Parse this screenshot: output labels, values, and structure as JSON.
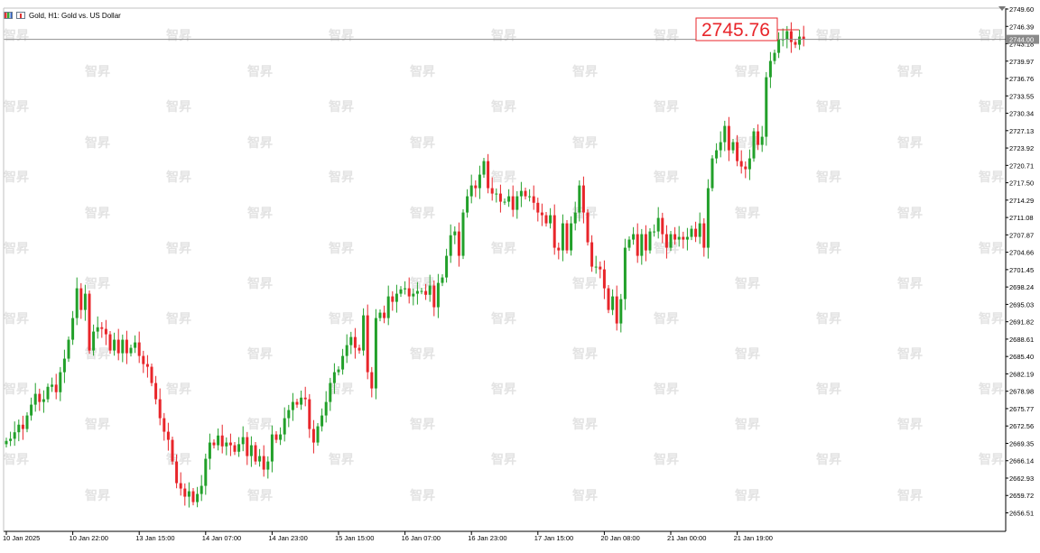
{
  "header": {
    "symbol_title": "Gold, H1:  Gold vs. US Dollar",
    "chart_icon": "bar-chart-icon",
    "candle_icon": "candlestick-icon"
  },
  "watermark": {
    "text": "智昇"
  },
  "price_label": {
    "value": "2745.76"
  },
  "current_price_tag": {
    "value": "2744.00"
  },
  "colors": {
    "up": "#22a02a",
    "down": "#e8252a",
    "axis": "#000000",
    "price_line": "#8f8f8f",
    "price_tag_bg": "#8a8a8a",
    "label_border": "#e8252a"
  },
  "chart_data": {
    "type": "candlestick",
    "y_tick_labels": [
      "2749.60",
      "2746.39",
      "2743.18",
      "2739.97",
      "2736.76",
      "2733.55",
      "2730.34",
      "2727.13",
      "2723.92",
      "2720.71",
      "2717.50",
      "2714.29",
      "2711.08",
      "2707.87",
      "2704.66",
      "2701.45",
      "2698.24",
      "2695.03",
      "2691.82",
      "2688.61",
      "2685.40",
      "2682.19",
      "2678.98",
      "2675.77",
      "2672.56",
      "2669.35",
      "2666.14",
      "2662.93",
      "2659.72",
      "2656.51"
    ],
    "ylim": [
      2656.51,
      2749.6
    ],
    "x_tick_labels": [
      "10 Jan 2025",
      "10 Jan 22:00",
      "13 Jan 15:00",
      "14 Jan 07:00",
      "14 Jan 23:00",
      "15 Jan 15:00",
      "16 Jan 07:00",
      "16 Jan 23:00",
      "17 Jan 15:00",
      "20 Jan 08:00",
      "21 Jan 00:00",
      "21 Jan 19:00"
    ],
    "x_tick_bar_index": [
      0,
      16,
      32,
      48,
      64,
      80,
      96,
      112,
      128,
      144,
      160,
      176
    ],
    "current_price": 2744.0,
    "annotated_high": 2745.76,
    "grid": false,
    "close": [
      2669.8,
      2670.2,
      2671.4,
      2672.8,
      2672.0,
      2674.5,
      2676.5,
      2678.5,
      2677.0,
      2677.5,
      2679.8,
      2680.2,
      2678.8,
      2682.5,
      2685.0,
      2688.5,
      2692.5,
      2698.0,
      2694.0,
      2697.0,
      2686.5,
      2690.0,
      2690.8,
      2690.5,
      2689.5,
      2686.5,
      2688.5,
      2686.0,
      2688.5,
      2686.0,
      2687.0,
      2688.0,
      2685.5,
      2684.0,
      2683.5,
      2680.5,
      2677.5,
      2674.0,
      2671.5,
      2670.0,
      2666.0,
      2662.0,
      2661.0,
      2659.5,
      2660.5,
      2658.5,
      2660.0,
      2661.5,
      2666.5,
      2669.5,
      2669.0,
      2670.8,
      2668.8,
      2669.5,
      2669.0,
      2667.8,
      2669.2,
      2670.5,
      2667.0,
      2669.0,
      2666.0,
      2667.0,
      2664.5,
      2666.0,
      2671.0,
      2670.0,
      2671.0,
      2674.0,
      2675.5,
      2677.0,
      2676.5,
      2677.8,
      2677.5,
      2672.0,
      2669.5,
      2672.5,
      2674.5,
      2677.0,
      2680.5,
      2682.5,
      2683.0,
      2685.5,
      2687.5,
      2689.0,
      2687.0,
      2686.5,
      2693.0,
      2682.5,
      2679.5,
      2692.5,
      2693.5,
      2692.5,
      2696.5,
      2695.5,
      2697.0,
      2697.8,
      2698.0,
      2696.5,
      2697.0,
      2697.5,
      2697.5,
      2696.8,
      2698.5,
      2694.5,
      2699.0,
      2700.0,
      2704.0,
      2707.8,
      2708.5,
      2704.0,
      2712.0,
      2715.0,
      2717.0,
      2716.5,
      2719.0,
      2721.5,
      2716.5,
      2715.5,
      2715.5,
      2714.0,
      2714.0,
      2715.0,
      2712.5,
      2715.0,
      2716.0,
      2715.0,
      2715.0,
      2713.8,
      2712.0,
      2711.5,
      2710.0,
      2711.5,
      2705.5,
      2705.0,
      2710.0,
      2705.0,
      2710.0,
      2712.0,
      2717.0,
      2712.0,
      2706.5,
      2702.0,
      2702.0,
      2701.5,
      2698.0,
      2694.0,
      2696.5,
      2691.5,
      2696.0,
      2705.5,
      2707.0,
      2708.0,
      2704.0,
      2708.0,
      2705.0,
      2708.5,
      2708.5,
      2711.0,
      2708.0,
      2705.5,
      2708.0,
      2707.0,
      2707.5,
      2707.0,
      2707.5,
      2709.0,
      2707.5,
      2710.0,
      2705.5,
      2716.5,
      2722.0,
      2723.5,
      2725.0,
      2728.0,
      2723.5,
      2725.0,
      2721.5,
      2720.5,
      2720.0,
      2722.0,
      2727.0,
      2724.5,
      2726.0,
      2737.0,
      2740.0,
      2741.5,
      2744.0,
      2744.0,
      2745.5,
      2743.5,
      2743.0,
      2744.5,
      2744.0
    ],
    "open": [
      2669.2,
      2669.8,
      2670.2,
      2671.4,
      2672.8,
      2672.0,
      2674.5,
      2676.5,
      2678.5,
      2677.0,
      2677.5,
      2679.8,
      2680.2,
      2678.8,
      2682.5,
      2685.0,
      2688.5,
      2692.5,
      2698.0,
      2694.0,
      2697.0,
      2686.5,
      2690.0,
      2690.8,
      2690.5,
      2689.5,
      2686.5,
      2688.5,
      2686.0,
      2688.5,
      2686.0,
      2687.0,
      2688.0,
      2685.5,
      2684.0,
      2683.5,
      2680.5,
      2677.5,
      2674.0,
      2671.5,
      2670.0,
      2666.0,
      2662.0,
      2661.0,
      2659.5,
      2660.5,
      2658.5,
      2660.0,
      2661.5,
      2666.5,
      2669.5,
      2669.0,
      2670.8,
      2668.8,
      2669.5,
      2669.0,
      2667.8,
      2669.2,
      2670.5,
      2667.0,
      2669.0,
      2666.0,
      2667.0,
      2664.5,
      2666.0,
      2671.0,
      2670.0,
      2671.0,
      2674.0,
      2675.5,
      2677.0,
      2676.5,
      2677.8,
      2677.5,
      2672.0,
      2669.5,
      2672.5,
      2674.5,
      2677.0,
      2680.5,
      2682.5,
      2683.0,
      2685.5,
      2687.5,
      2689.0,
      2687.0,
      2686.5,
      2693.0,
      2682.5,
      2679.5,
      2692.5,
      2693.5,
      2692.5,
      2696.5,
      2695.5,
      2697.0,
      2697.8,
      2698.0,
      2696.5,
      2697.0,
      2697.5,
      2697.5,
      2696.8,
      2698.5,
      2694.5,
      2699.0,
      2700.0,
      2704.0,
      2707.8,
      2708.5,
      2704.0,
      2712.0,
      2715.0,
      2717.0,
      2716.5,
      2719.0,
      2721.5,
      2716.5,
      2715.5,
      2715.5,
      2714.0,
      2714.0,
      2715.0,
      2712.5,
      2715.0,
      2716.0,
      2715.0,
      2715.0,
      2713.8,
      2712.0,
      2711.5,
      2710.0,
      2711.5,
      2705.5,
      2705.0,
      2710.0,
      2705.0,
      2710.0,
      2712.0,
      2717.0,
      2712.0,
      2706.5,
      2702.0,
      2702.0,
      2701.5,
      2698.0,
      2694.0,
      2696.5,
      2691.5,
      2696.0,
      2705.5,
      2707.0,
      2708.0,
      2704.0,
      2708.0,
      2705.0,
      2708.5,
      2708.5,
      2711.0,
      2708.0,
      2705.5,
      2708.0,
      2707.0,
      2707.5,
      2707.0,
      2707.5,
      2709.0,
      2707.5,
      2710.0,
      2705.5,
      2716.5,
      2722.0,
      2723.5,
      2725.0,
      2728.0,
      2723.5,
      2725.0,
      2721.5,
      2720.5,
      2720.0,
      2722.0,
      2727.0,
      2724.5,
      2726.0,
      2737.0,
      2740.0,
      2741.5,
      2744.0,
      2744.0,
      2745.5,
      2743.5,
      2743.0,
      2744.5
    ]
  }
}
